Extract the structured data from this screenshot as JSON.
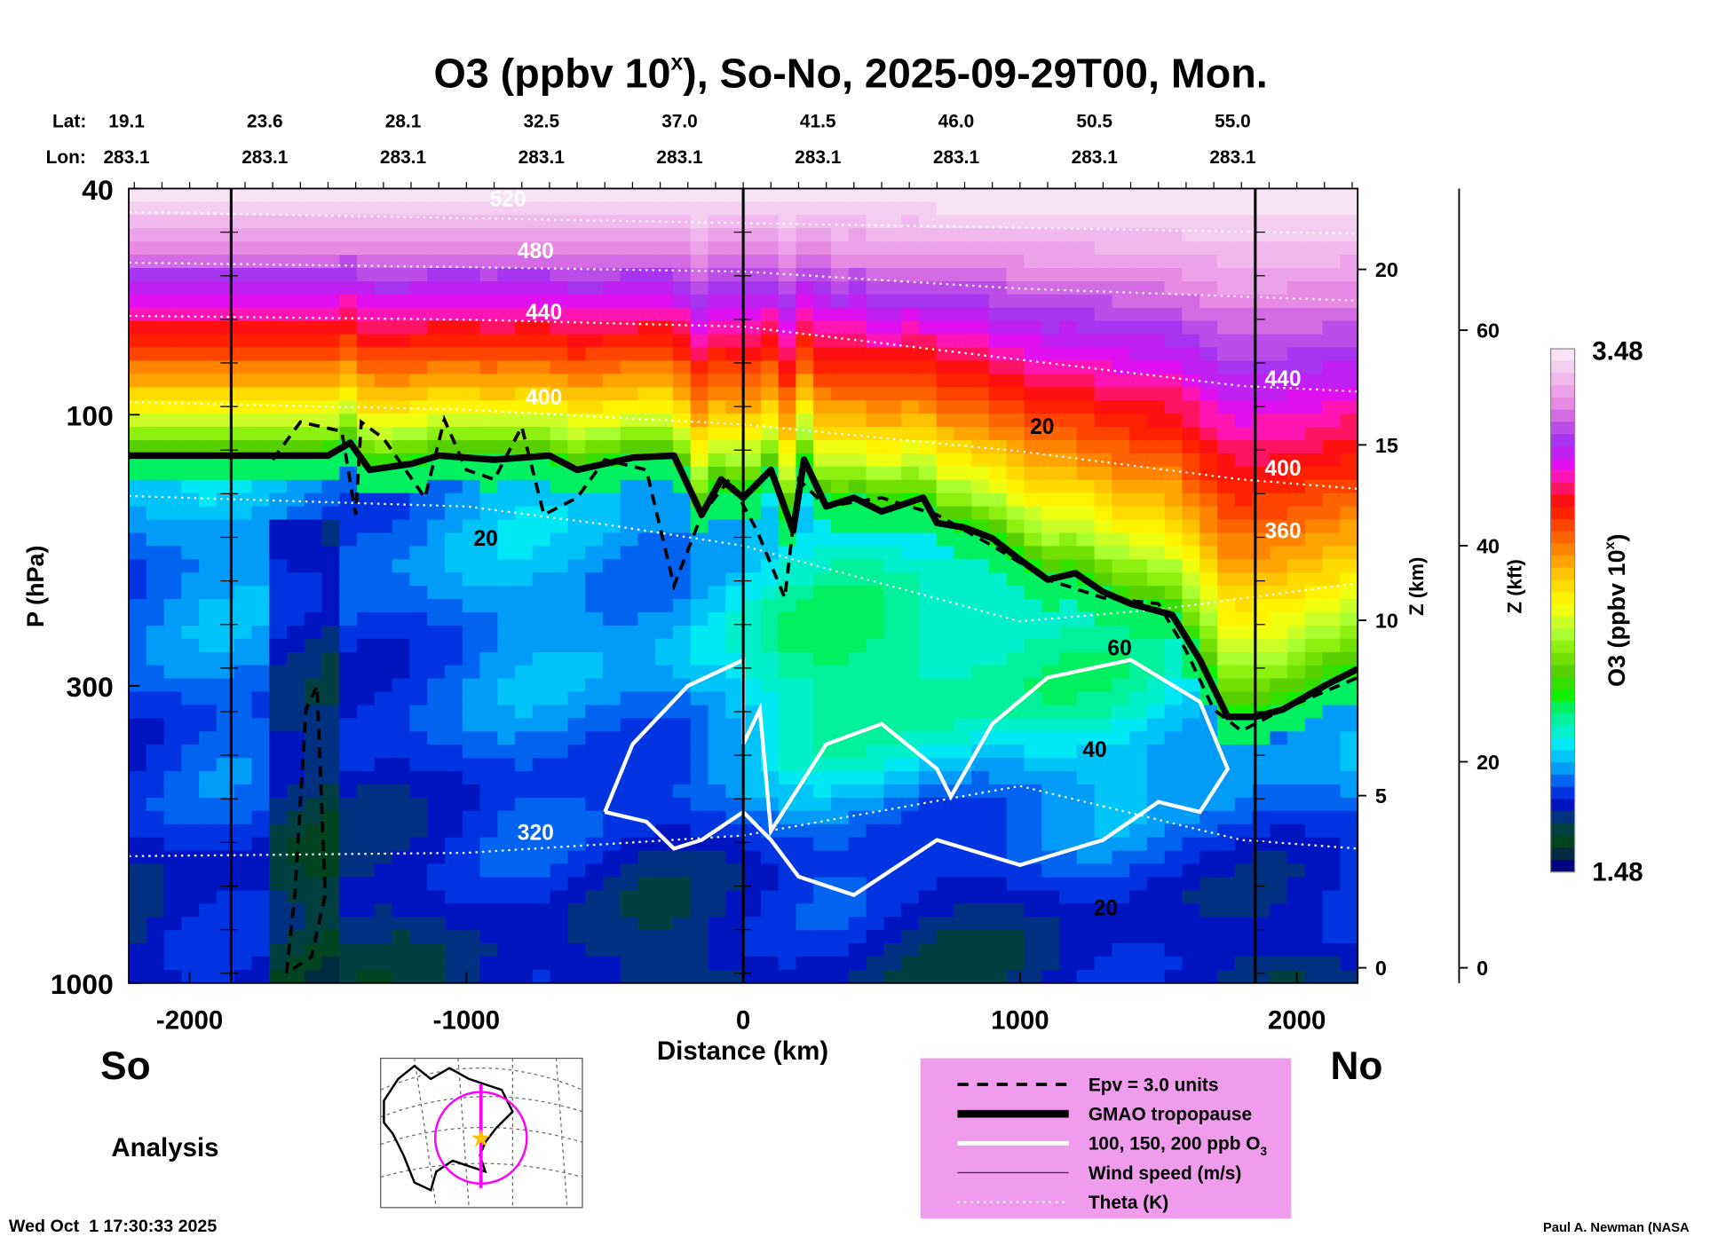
{
  "chart_data": {
    "type": "heatmap",
    "title": "O3 (ppbv 10",
    "title_sup": "x",
    "title_rest": "), So-No, 2025-09-29T00, Mon.",
    "xlabel": "Distance (km)",
    "ylabel": "P (hPa)",
    "xlim": [
      -2220,
      2220
    ],
    "ylim_hpa": [
      1000,
      40
    ],
    "x_ticks": [
      -2000,
      -1000,
      0,
      1000,
      2000
    ],
    "x_tick_labels": [
      "-2000",
      "-1000",
      "0",
      "1000",
      "2000"
    ],
    "y_ticks": [
      40,
      100,
      300,
      1000
    ],
    "y_tick_labels": [
      "40",
      "100",
      "300",
      "1000"
    ],
    "z_km_label": "Z (km)",
    "z_km_ticks": [
      {
        "label": "20",
        "p": 55.5
      },
      {
        "label": "15",
        "p": 113
      },
      {
        "label": "10",
        "p": 230
      },
      {
        "label": "5",
        "p": 468
      },
      {
        "label": "0",
        "p": 940
      }
    ],
    "z_kft_label": "Z (kft)",
    "z_kft_ticks": [
      {
        "label": "60",
        "p": 71
      },
      {
        "label": "40",
        "p": 170
      },
      {
        "label": "20",
        "p": 408
      },
      {
        "label": "0",
        "p": 940
      }
    ],
    "vertical_markers_km": [
      -1850,
      0,
      1850
    ],
    "lat_label": "Lat:",
    "lon_label": "Lon:",
    "lat": [
      "19.1",
      "23.6",
      "28.1",
      "32.5",
      "37.0",
      "41.5",
      "46.0",
      "50.5",
      "55.0"
    ],
    "lon": [
      "283.1",
      "283.1",
      "283.1",
      "283.1",
      "283.1",
      "283.1",
      "283.1",
      "283.1",
      "283.1"
    ],
    "colorbar": {
      "label": "O3 (ppbv 10",
      "label_sup": "x",
      "label_end": ")",
      "min": 1.48,
      "max": 3.48,
      "min_label": "1.48",
      "max_label": "3.48",
      "colors": [
        "#f8e2f6",
        "#f4cef0",
        "#f0b8ec",
        "#eca2e8",
        "#e88ae4",
        "#d46ae4",
        "#bc4ce8",
        "#a634f0",
        "#c020f2",
        "#e010f0",
        "#ff14b4",
        "#ff1464",
        "#ff1010",
        "#ff2200",
        "#ff4400",
        "#ff6400",
        "#ff8400",
        "#ffa400",
        "#ffc200",
        "#ffdc00",
        "#fff400",
        "#eeff10",
        "#ccff28",
        "#aaff30",
        "#8cf010",
        "#72e000",
        "#56d000",
        "#34e000",
        "#10f000",
        "#00f060",
        "#00f09c",
        "#00f0cc",
        "#00e8f4",
        "#00c4f8",
        "#009cf8",
        "#0064f0",
        "#0034e0",
        "#0014c0",
        "#003080",
        "#004040",
        "#004420",
        "#002a40",
        "#000080"
      ]
    },
    "tropopause": [
      [
        -2220,
        118
      ],
      [
        -1500,
        118
      ],
      [
        -1420,
        112
      ],
      [
        -1350,
        125
      ],
      [
        -1200,
        122
      ],
      [
        -1100,
        118
      ],
      [
        -900,
        120
      ],
      [
        -700,
        118
      ],
      [
        -600,
        125
      ],
      [
        -400,
        119
      ],
      [
        -250,
        118
      ],
      [
        -150,
        150
      ],
      [
        -80,
        130
      ],
      [
        0,
        140
      ],
      [
        100,
        125
      ],
      [
        180,
        160
      ],
      [
        220,
        120
      ],
      [
        300,
        145
      ],
      [
        400,
        140
      ],
      [
        500,
        148
      ],
      [
        650,
        140
      ],
      [
        700,
        155
      ],
      [
        800,
        158
      ],
      [
        900,
        165
      ],
      [
        1000,
        180
      ],
      [
        1100,
        195
      ],
      [
        1200,
        190
      ],
      [
        1300,
        205
      ],
      [
        1400,
        215
      ],
      [
        1550,
        225
      ],
      [
        1650,
        270
      ],
      [
        1750,
        340
      ],
      [
        1850,
        340
      ],
      [
        1950,
        330
      ],
      [
        2100,
        300
      ],
      [
        2220,
        280
      ]
    ],
    "theta": [
      {
        "label": "320",
        "points": [
          [
            -2220,
            598
          ],
          [
            -1000,
            590
          ],
          [
            0,
            550
          ],
          [
            1000,
            450
          ],
          [
            1800,
            560
          ],
          [
            2220,
            580
          ]
        ]
      },
      {
        "label": "360",
        "points": [
          [
            -2220,
            139
          ],
          [
            -1000,
            145
          ],
          [
            -500,
            156
          ],
          [
            0,
            170
          ],
          [
            1000,
            231
          ],
          [
            1500,
            220
          ],
          [
            2220,
            198
          ]
        ]
      },
      {
        "label": "400",
        "points": [
          [
            -2220,
            95
          ],
          [
            -1000,
            98
          ],
          [
            0,
            104
          ],
          [
            1000,
            116
          ],
          [
            1800,
            130
          ],
          [
            2220,
            135
          ]
        ]
      },
      {
        "label": "440",
        "points": [
          [
            -2220,
            67
          ],
          [
            -1000,
            68
          ],
          [
            0,
            70
          ],
          [
            1000,
            80
          ],
          [
            1800,
            89
          ],
          [
            2220,
            91
          ]
        ]
      },
      {
        "label": "480",
        "points": [
          [
            -2220,
            54
          ],
          [
            -1000,
            55
          ],
          [
            0,
            56
          ],
          [
            1000,
            60
          ],
          [
            2220,
            63
          ]
        ]
      },
      {
        "label": "520",
        "points": [
          [
            -2220,
            44
          ],
          [
            0,
            46
          ],
          [
            2220,
            48
          ]
        ]
      }
    ],
    "theta_label_positions": [
      [
        -750,
        560
      ],
      [
        -750,
        53
      ],
      [
        -720,
        68
      ],
      [
        -720,
        96
      ],
      [
        1950,
        165
      ],
      [
        1950,
        128
      ],
      [
        1950,
        89
      ],
      [
        -850,
        43
      ]
    ],
    "theta_label_text": [
      "320",
      "480",
      "440",
      "400",
      "360",
      "400",
      "440",
      "520"
    ],
    "wind_labels": [
      {
        "text": "20",
        "d": -930,
        "p": 170
      },
      {
        "text": "20",
        "d": 1080,
        "p": 108
      },
      {
        "text": "60",
        "d": 1360,
        "p": 265
      },
      {
        "text": "40",
        "d": 1270,
        "p": 400
      },
      {
        "text": "20",
        "d": 1310,
        "p": 760
      }
    ],
    "o3_contour": [
      [
        -500,
        500
      ],
      [
        -400,
        380
      ],
      [
        -200,
        300
      ],
      [
        0,
        270
      ],
      [
        0,
        380
      ],
      [
        60,
        330
      ],
      [
        100,
        540
      ],
      [
        300,
        380
      ],
      [
        500,
        350
      ],
      [
        700,
        420
      ],
      [
        750,
        470
      ],
      [
        900,
        350
      ],
      [
        1100,
        290
      ],
      [
        1400,
        270
      ],
      [
        1650,
        320
      ],
      [
        1750,
        420
      ],
      [
        1650,
        500
      ],
      [
        1500,
        480
      ],
      [
        1300,
        560
      ],
      [
        1000,
        620
      ],
      [
        700,
        560
      ],
      [
        400,
        700
      ],
      [
        200,
        650
      ],
      [
        100,
        560
      ],
      [
        0,
        500
      ],
      [
        -150,
        560
      ],
      [
        -250,
        580
      ],
      [
        -350,
        520
      ],
      [
        -500,
        500
      ]
    ],
    "epv": [
      [
        [
          -1650,
          960
        ],
        [
          -1620,
          700
        ],
        [
          -1580,
          330
        ],
        [
          -1540,
          300
        ],
        [
          -1510,
          700
        ],
        [
          -1560,
          900
        ],
        [
          -1650,
          960
        ]
      ],
      [
        [
          -1700,
          120
        ],
        [
          -1600,
          103
        ],
        [
          -1450,
          107
        ],
        [
          -1400,
          150
        ],
        [
          -1380,
          103
        ],
        [
          -1300,
          110
        ],
        [
          -1150,
          140
        ],
        [
          -1080,
          102
        ],
        [
          -1000,
          125
        ],
        [
          -900,
          130
        ],
        [
          -800,
          105
        ],
        [
          -720,
          150
        ],
        [
          -600,
          140
        ],
        [
          -500,
          120
        ],
        [
          -350,
          125
        ],
        [
          -250,
          200
        ],
        [
          -150,
          150
        ],
        [
          -50,
          130
        ],
        [
          50,
          160
        ],
        [
          150,
          210
        ],
        [
          200,
          130
        ],
        [
          300,
          145
        ],
        [
          500,
          140
        ],
        [
          700,
          150
        ],
        [
          900,
          170
        ],
        [
          1100,
          195
        ],
        [
          1300,
          210
        ],
        [
          1500,
          215
        ],
        [
          1600,
          260
        ],
        [
          1700,
          330
        ],
        [
          1800,
          360
        ],
        [
          1950,
          330
        ],
        [
          2220,
          290
        ]
      ]
    ]
  },
  "labels": {
    "south": "So",
    "north": "No",
    "analysis": "Analysis",
    "timestamp": "Wed Oct  1 17:30:33 2025",
    "credit": "Paul A. Newman (NASA"
  },
  "legend": {
    "items": [
      {
        "label": "Epv = 3.0 units",
        "style": "dashed"
      },
      {
        "label": "GMAO tropopause",
        "style": "thick"
      },
      {
        "label": "100, 150, 200 ppb O",
        "sub": "3",
        "style": "white"
      },
      {
        "label": "Wind speed (m/s)",
        "style": "thin"
      },
      {
        "label": "Theta (K)",
        "style": "dotted"
      }
    ],
    "background": "#f09cec"
  },
  "map": {
    "track_color": "#ff00ff",
    "star_color": "#ffc000"
  }
}
